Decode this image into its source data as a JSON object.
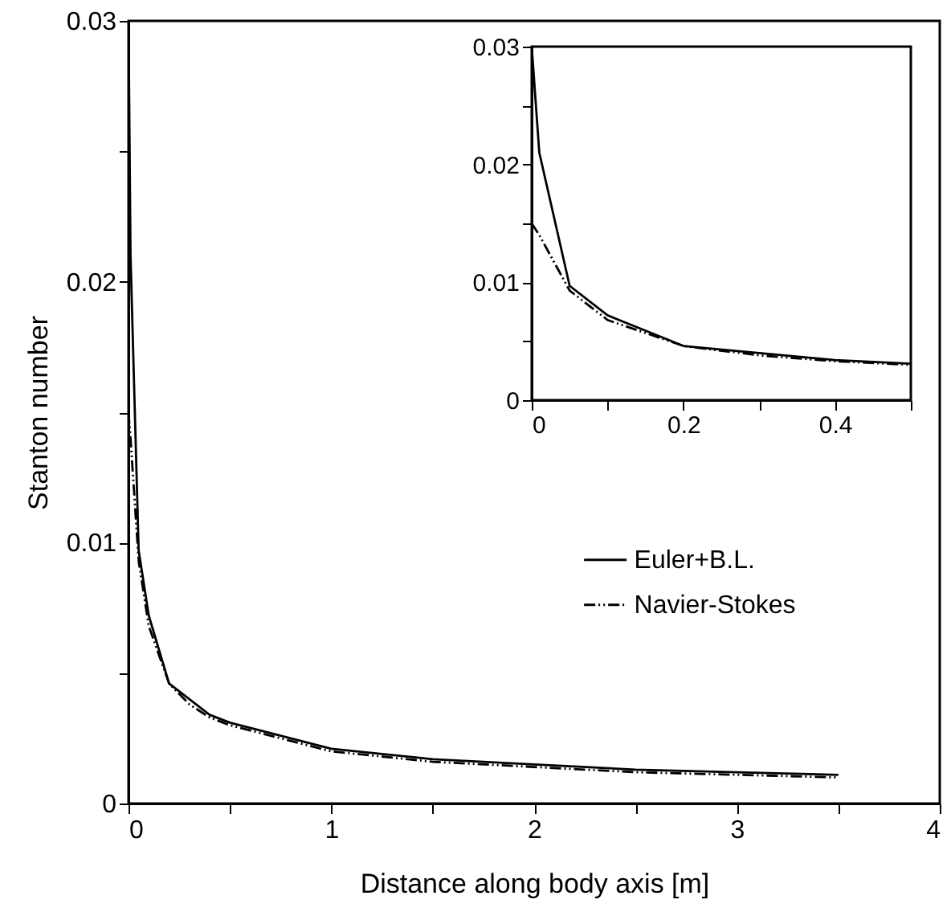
{
  "chart_data": [
    {
      "type": "line",
      "xlabel": "Distance along body axis [m]",
      "ylabel": "Stanton number",
      "xlim": [
        0,
        4
      ],
      "ylim": [
        0,
        0.03
      ],
      "xticks": [
        0,
        {
          "value": 0.5,
          "label": null
        },
        1,
        {
          "value": 1.5,
          "label": null
        },
        2,
        {
          "value": 2.5,
          "label": null
        },
        3,
        {
          "value": 3.5,
          "label": null
        },
        4
      ],
      "yticks": [
        0,
        {
          "value": 0.005,
          "label": null
        },
        0.01,
        {
          "value": 0.015,
          "label": null
        },
        0.02,
        {
          "value": 0.025,
          "label": null
        },
        0.03
      ],
      "legend": "right",
      "grid": false,
      "series": [
        {
          "name": "Euler+B.L.",
          "color": "#000000",
          "line_style": "solid",
          "x": [
            0,
            0.01,
            0.05,
            0.1,
            0.2,
            0.3,
            0.4,
            0.5,
            1.0,
            1.5,
            2.0,
            2.5,
            3.0,
            3.5
          ],
          "values": [
            0.03,
            0.021,
            0.0097,
            0.0072,
            0.0046,
            0.004,
            0.0034,
            0.0031,
            0.0021,
            0.0017,
            0.0015,
            0.0013,
            0.0012,
            0.0011
          ]
        },
        {
          "name": "Navier-Stokes",
          "color": "#000000",
          "line_style": "dashed",
          "x": [
            0,
            0.01,
            0.05,
            0.1,
            0.2,
            0.3,
            0.4,
            0.5,
            0.75,
            1.0,
            1.5,
            2.0,
            2.5,
            3.0,
            3.5
          ],
          "values": [
            0.015,
            0.014,
            0.0093,
            0.0068,
            0.0046,
            0.0038,
            0.0033,
            0.003,
            0.0025,
            0.002,
            0.0016,
            0.0014,
            0.0012,
            0.0011,
            0.001
          ]
        }
      ]
    },
    {
      "type": "line",
      "xlim": [
        0,
        0.5
      ],
      "ylim": [
        0,
        0.03
      ],
      "xticks": [
        0,
        {
          "value": 0.1,
          "label": null
        },
        0.2,
        {
          "value": 0.3,
          "label": null
        },
        0.4,
        {
          "value": 0.5,
          "label": null
        }
      ],
      "yticks": [
        0,
        {
          "value": 0.005,
          "label": null
        },
        0.01,
        {
          "value": 0.015,
          "label": null
        },
        0.02,
        {
          "value": 0.025,
          "label": null
        },
        0.03
      ],
      "grid": false,
      "series": [
        {
          "color": "#000000",
          "line_style": "solid",
          "x": [
            0,
            0.01,
            0.05,
            0.1,
            0.2,
            0.3,
            0.4,
            0.5
          ],
          "values": [
            0.03,
            0.021,
            0.0097,
            0.0072,
            0.0046,
            0.004,
            0.0034,
            0.0031
          ]
        },
        {
          "color": "#000000",
          "line_style": "dashed",
          "x": [
            0,
            0.01,
            0.05,
            0.1,
            0.2,
            0.3,
            0.4,
            0.5
          ],
          "values": [
            0.015,
            0.014,
            0.0093,
            0.0068,
            0.0046,
            0.0038,
            0.0033,
            0.003
          ]
        }
      ]
    }
  ]
}
